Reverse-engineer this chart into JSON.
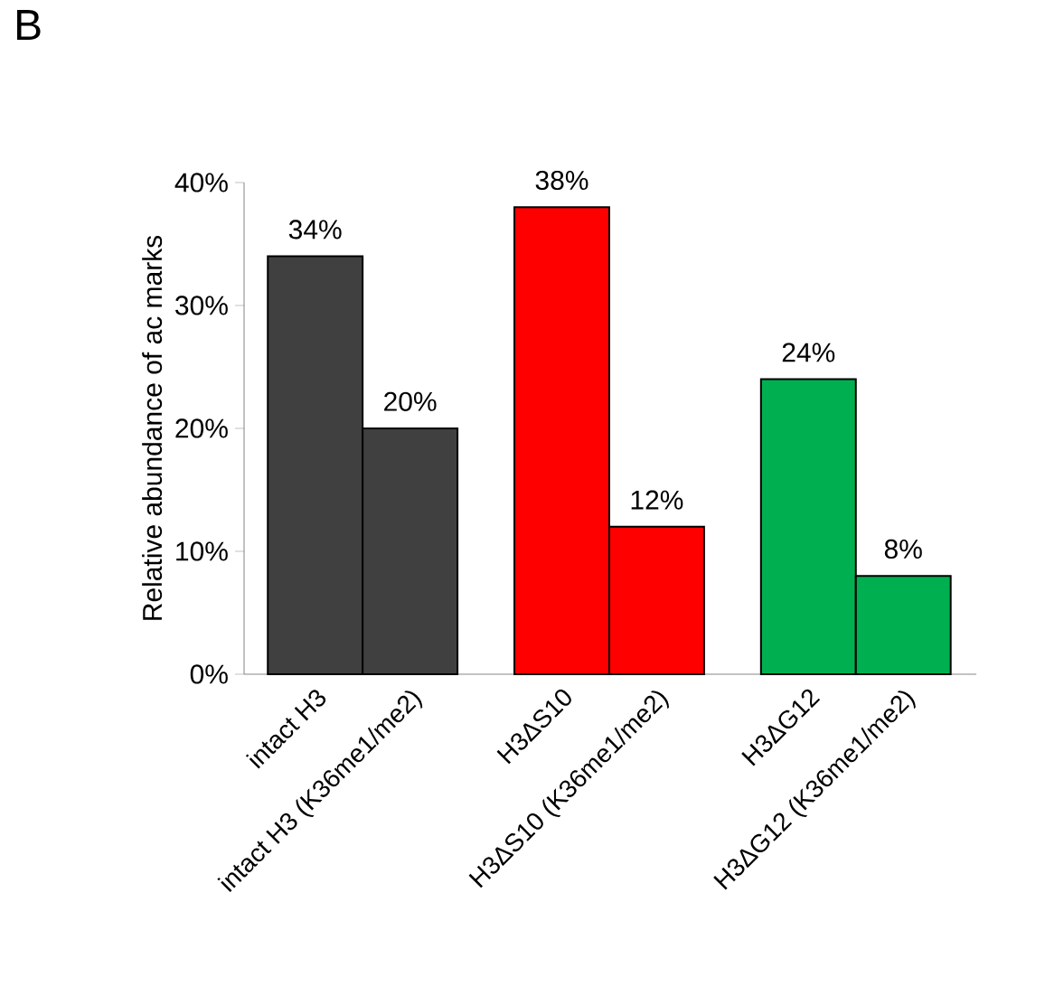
{
  "chart_data": {
    "type": "bar",
    "categories": [
      "intact H3",
      "intact H3 (K36me1/me2)",
      "H3ΔS10",
      "H3ΔS10 (K36me1/me2)",
      "H3ΔG12",
      "H3ΔG12 (K36me1/me2)"
    ],
    "values": [
      34,
      20,
      38,
      12,
      24,
      8
    ],
    "colors": [
      "#404040",
      "#404040",
      "#ff0000",
      "#ff0000",
      "#00b050",
      "#00b050"
    ],
    "value_labels": [
      "34%",
      "20%",
      "38%",
      "12%",
      "24%",
      "8%"
    ],
    "ylabel": "Relative abundance of ac marks",
    "ylim": [
      0,
      40
    ],
    "yticks": [
      {
        "value": 0,
        "label": "0%"
      },
      {
        "value": 10,
        "label": "10%"
      },
      {
        "value": 20,
        "label": "20%"
      },
      {
        "value": 30,
        "label": "30%"
      },
      {
        "value": 40,
        "label": "40%"
      }
    ],
    "grid": false,
    "annotations": [
      "B"
    ]
  }
}
